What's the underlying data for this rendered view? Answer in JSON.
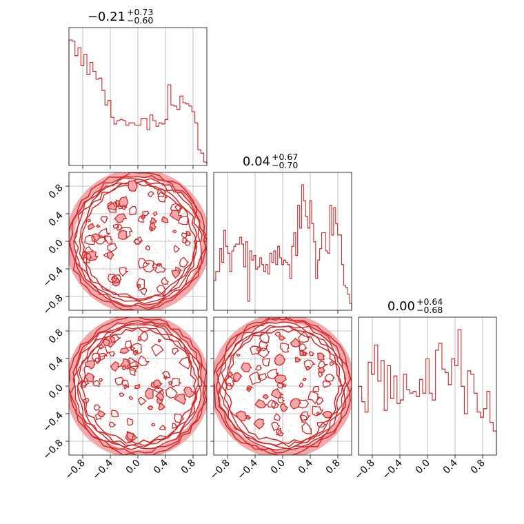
{
  "colors": {
    "series": "#d62728",
    "grid": "#b0b0b0",
    "frame": "#222222"
  },
  "chart_data": {
    "type": "corner",
    "ticks": [
      "−0.8",
      "−0.4",
      "0.0",
      "0.4",
      "0.8"
    ],
    "tick_values": [
      -0.8,
      -0.4,
      0.0,
      0.4,
      0.8
    ],
    "range": [
      -1.0,
      1.0
    ],
    "grid": true,
    "diagonal_titles": [
      {
        "median": "−0.21",
        "plus": "+0.73",
        "minus": "−0.60"
      },
      {
        "median": "0.04",
        "plus": "+0.67",
        "minus": "−0.70"
      },
      {
        "median": "0.00",
        "plus": "+0.64",
        "minus": "−0.68"
      }
    ],
    "histograms": [
      {
        "type": "step-histogram",
        "bins": [
          -1.0,
          1.0
        ],
        "counts": [
          112,
          111,
          98,
          105,
          89,
          99,
          81,
          92,
          84,
          77,
          78,
          67,
          54,
          58,
          43,
          37,
          40,
          41,
          40,
          36,
          38,
          38,
          36,
          36,
          42,
          42,
          32,
          45,
          40,
          35,
          38,
          37,
          41,
          72,
          54,
          53,
          50,
          62,
          56,
          55,
          53,
          48,
          38,
          14,
          11,
          3
        ]
      },
      {
        "type": "step-histogram",
        "bins": [
          -1.0,
          1.0
        ],
        "counts": [
          13,
          17,
          17,
          27,
          21,
          35,
          28,
          25,
          17,
          26,
          28,
          29,
          29,
          32,
          29,
          19,
          30,
          4,
          26,
          22,
          24,
          18,
          19,
          23,
          20,
          17,
          20,
          16,
          25,
          21,
          26,
          20,
          28,
          23,
          20,
          22,
          21,
          20,
          14,
          28,
          34,
          24,
          46,
          36,
          55,
          48,
          41,
          36,
          48,
          38,
          30,
          14,
          22,
          27,
          34,
          34,
          26,
          25,
          46,
          33,
          45,
          38,
          33,
          33,
          20,
          11,
          10,
          7,
          3
        ]
      },
      {
        "type": "step-histogram",
        "bins": [
          -1.0,
          1.0
        ],
        "counts": [
          40,
          31,
          25,
          54,
          47,
          64,
          43,
          55,
          26,
          52,
          33,
          46,
          30,
          32,
          47,
          38,
          36,
          37,
          34,
          44,
          36,
          56,
          36,
          32,
          61,
          65,
          50,
          48,
          41,
          56,
          52,
          73,
          40,
          24,
          49,
          47,
          36,
          25,
          22,
          27,
          37,
          19,
          14
        ]
      }
    ],
    "contour_panels": [
      {
        "row": 2,
        "col": 1,
        "xlim": [
          -1.0,
          1.0
        ],
        "ylim": [
          -1.0,
          1.0
        ],
        "shape": "unit-disk, filled noise contours"
      },
      {
        "row": 3,
        "col": 1,
        "xlim": [
          -1.0,
          1.0
        ],
        "ylim": [
          -1.0,
          1.0
        ],
        "shape": "unit-disk, filled noise contours"
      },
      {
        "row": 3,
        "col": 2,
        "xlim": [
          -1.0,
          1.0
        ],
        "ylim": [
          -1.0,
          1.0
        ],
        "shape": "unit-disk, filled noise contours"
      }
    ]
  }
}
